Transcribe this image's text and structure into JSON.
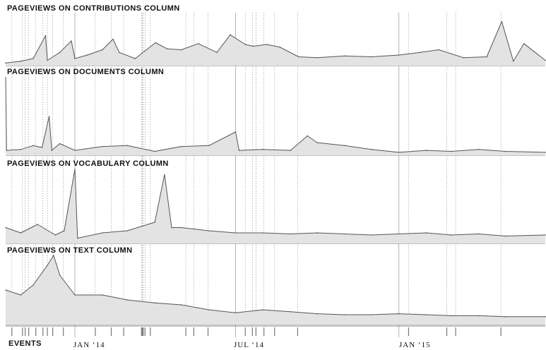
{
  "chart_data": {
    "type": "area",
    "style": {
      "line_color": "#555555",
      "fill_color": "#e3e3e3",
      "grid_color": "#9a9a9a",
      "text_color": "#111111"
    },
    "x_axis": {
      "start": "2013-10-15",
      "end": "2015-06-15",
      "ticks": [
        {
          "date": "2014-01-01",
          "label": "JAN ‘14"
        },
        {
          "date": "2014-07-01",
          "label": "JUL ‘14"
        },
        {
          "date": "2015-01-01",
          "label": "JAN ‘15"
        }
      ]
    },
    "event_dates": [
      "2013-10-22",
      "2013-11-03",
      "2013-11-06",
      "2013-11-10",
      "2013-11-18",
      "2013-11-26",
      "2013-12-01",
      "2013-12-07",
      "2013-12-19",
      "2014-01-24",
      "2014-02-11",
      "2014-02-25",
      "2014-03-17",
      "2014-03-18",
      "2014-03-19",
      "2014-03-21",
      "2014-03-27",
      "2014-05-06",
      "2014-05-15",
      "2014-05-31",
      "2014-07-12",
      "2014-07-20",
      "2014-07-24",
      "2014-08-02",
      "2014-08-14",
      "2014-09-09",
      "2015-01-12",
      "2015-02-24",
      "2015-03-06",
      "2015-04-26"
    ],
    "events_label": "EVENTS",
    "panels": [
      {
        "title": "PAGEVIEWS ON CONTRIBUTIONS COLUMN",
        "series": [
          {
            "x": "2013-10-15",
            "y": 0.3
          },
          {
            "x": "2013-11-01",
            "y": 0.5
          },
          {
            "x": "2013-11-15",
            "y": 0.8
          },
          {
            "x": "2013-11-29",
            "y": 3.4
          },
          {
            "x": "2013-12-01",
            "y": 0.6
          },
          {
            "x": "2013-12-15",
            "y": 1.5
          },
          {
            "x": "2013-12-28",
            "y": 2.8
          },
          {
            "x": "2014-01-01",
            "y": 0.8
          },
          {
            "x": "2014-01-15",
            "y": 1.2
          },
          {
            "x": "2014-02-01",
            "y": 1.8
          },
          {
            "x": "2014-02-13",
            "y": 3.0
          },
          {
            "x": "2014-02-20",
            "y": 1.5
          },
          {
            "x": "2014-03-10",
            "y": 0.8
          },
          {
            "x": "2014-03-20",
            "y": 1.6
          },
          {
            "x": "2014-04-02",
            "y": 2.6
          },
          {
            "x": "2014-04-15",
            "y": 1.9
          },
          {
            "x": "2014-05-01",
            "y": 1.8
          },
          {
            "x": "2014-05-20",
            "y": 2.5
          },
          {
            "x": "2014-06-10",
            "y": 1.5
          },
          {
            "x": "2014-06-25",
            "y": 3.5
          },
          {
            "x": "2014-07-12",
            "y": 2.4
          },
          {
            "x": "2014-07-21",
            "y": 2.2
          },
          {
            "x": "2014-08-05",
            "y": 2.4
          },
          {
            "x": "2014-08-20",
            "y": 2.1
          },
          {
            "x": "2014-09-10",
            "y": 1.0
          },
          {
            "x": "2014-10-01",
            "y": 0.9
          },
          {
            "x": "2014-11-01",
            "y": 1.1
          },
          {
            "x": "2014-12-01",
            "y": 1.0
          },
          {
            "x": "2015-01-01",
            "y": 1.2
          },
          {
            "x": "2015-01-25",
            "y": 1.5
          },
          {
            "x": "2015-02-15",
            "y": 1.8
          },
          {
            "x": "2015-03-15",
            "y": 0.9
          },
          {
            "x": "2015-04-10",
            "y": 1.0
          },
          {
            "x": "2015-04-27",
            "y": 5.0
          },
          {
            "x": "2015-05-10",
            "y": 0.5
          },
          {
            "x": "2015-05-22",
            "y": 2.5
          },
          {
            "x": "2015-06-15",
            "y": 0.6
          }
        ]
      },
      {
        "title": "PAGEVIEWS ON DOCUMENTS COLUMN",
        "series": [
          {
            "x": "2013-10-15",
            "y": 8.0
          },
          {
            "x": "2013-10-16",
            "y": 0.5
          },
          {
            "x": "2013-11-01",
            "y": 0.6
          },
          {
            "x": "2013-11-15",
            "y": 1.0
          },
          {
            "x": "2013-11-25",
            "y": 0.8
          },
          {
            "x": "2013-12-03",
            "y": 4.0
          },
          {
            "x": "2013-12-06",
            "y": 0.5
          },
          {
            "x": "2013-12-15",
            "y": 1.2
          },
          {
            "x": "2014-01-01",
            "y": 0.5
          },
          {
            "x": "2014-02-01",
            "y": 0.9
          },
          {
            "x": "2014-03-01",
            "y": 1.0
          },
          {
            "x": "2014-04-01",
            "y": 0.4
          },
          {
            "x": "2014-05-01",
            "y": 0.9
          },
          {
            "x": "2014-06-01",
            "y": 1.0
          },
          {
            "x": "2014-07-01",
            "y": 2.4
          },
          {
            "x": "2014-07-05",
            "y": 0.5
          },
          {
            "x": "2014-08-01",
            "y": 0.6
          },
          {
            "x": "2014-09-01",
            "y": 0.5
          },
          {
            "x": "2014-09-20",
            "y": 2.0
          },
          {
            "x": "2014-10-01",
            "y": 1.3
          },
          {
            "x": "2014-11-01",
            "y": 1.0
          },
          {
            "x": "2014-12-01",
            "y": 0.6
          },
          {
            "x": "2015-01-01",
            "y": 0.3
          },
          {
            "x": "2015-02-01",
            "y": 0.5
          },
          {
            "x": "2015-03-01",
            "y": 0.4
          },
          {
            "x": "2015-04-01",
            "y": 0.6
          },
          {
            "x": "2015-05-01",
            "y": 0.4
          },
          {
            "x": "2015-06-15",
            "y": 0.3
          }
        ]
      },
      {
        "title": "PAGEVIEWS ON VOCABULARY COLUMN",
        "series": [
          {
            "x": "2013-10-15",
            "y": 1.5
          },
          {
            "x": "2013-11-01",
            "y": 1.0
          },
          {
            "x": "2013-11-20",
            "y": 1.8
          },
          {
            "x": "2013-12-10",
            "y": 0.8
          },
          {
            "x": "2013-12-20",
            "y": 1.2
          },
          {
            "x": "2014-01-01",
            "y": 7.0
          },
          {
            "x": "2014-01-04",
            "y": 0.5
          },
          {
            "x": "2014-02-01",
            "y": 1.0
          },
          {
            "x": "2014-03-01",
            "y": 1.2
          },
          {
            "x": "2014-04-01",
            "y": 2.0
          },
          {
            "x": "2014-04-12",
            "y": 6.5
          },
          {
            "x": "2014-04-20",
            "y": 1.5
          },
          {
            "x": "2014-05-01",
            "y": 1.5
          },
          {
            "x": "2014-06-01",
            "y": 1.2
          },
          {
            "x": "2014-07-01",
            "y": 1.0
          },
          {
            "x": "2014-08-01",
            "y": 1.0
          },
          {
            "x": "2014-09-01",
            "y": 0.9
          },
          {
            "x": "2014-10-01",
            "y": 1.0
          },
          {
            "x": "2014-11-01",
            "y": 0.9
          },
          {
            "x": "2014-12-01",
            "y": 0.8
          },
          {
            "x": "2015-01-01",
            "y": 0.9
          },
          {
            "x": "2015-02-01",
            "y": 1.0
          },
          {
            "x": "2015-03-01",
            "y": 0.8
          },
          {
            "x": "2015-04-01",
            "y": 0.9
          },
          {
            "x": "2015-05-01",
            "y": 0.7
          },
          {
            "x": "2015-06-15",
            "y": 0.8
          }
        ]
      },
      {
        "title": "PAGEVIEWS ON TEXT COLUMN",
        "series": [
          {
            "x": "2013-10-15",
            "y": 3.5
          },
          {
            "x": "2013-11-01",
            "y": 3.0
          },
          {
            "x": "2013-11-15",
            "y": 4.0
          },
          {
            "x": "2013-12-01",
            "y": 6.0
          },
          {
            "x": "2013-12-08",
            "y": 7.0
          },
          {
            "x": "2013-12-15",
            "y": 5.0
          },
          {
            "x": "2014-01-01",
            "y": 3.0
          },
          {
            "x": "2014-02-01",
            "y": 3.0
          },
          {
            "x": "2014-03-01",
            "y": 2.5
          },
          {
            "x": "2014-04-01",
            "y": 2.2
          },
          {
            "x": "2014-05-01",
            "y": 2.0
          },
          {
            "x": "2014-06-01",
            "y": 1.5
          },
          {
            "x": "2014-07-01",
            "y": 1.2
          },
          {
            "x": "2014-08-01",
            "y": 1.5
          },
          {
            "x": "2014-09-01",
            "y": 1.3
          },
          {
            "x": "2014-10-01",
            "y": 1.1
          },
          {
            "x": "2014-11-01",
            "y": 1.0
          },
          {
            "x": "2014-12-01",
            "y": 1.0
          },
          {
            "x": "2015-01-01",
            "y": 1.1
          },
          {
            "x": "2015-02-01",
            "y": 1.0
          },
          {
            "x": "2015-03-01",
            "y": 0.9
          },
          {
            "x": "2015-04-01",
            "y": 0.9
          },
          {
            "x": "2015-05-01",
            "y": 0.8
          },
          {
            "x": "2015-06-15",
            "y": 0.8
          }
        ]
      }
    ]
  }
}
